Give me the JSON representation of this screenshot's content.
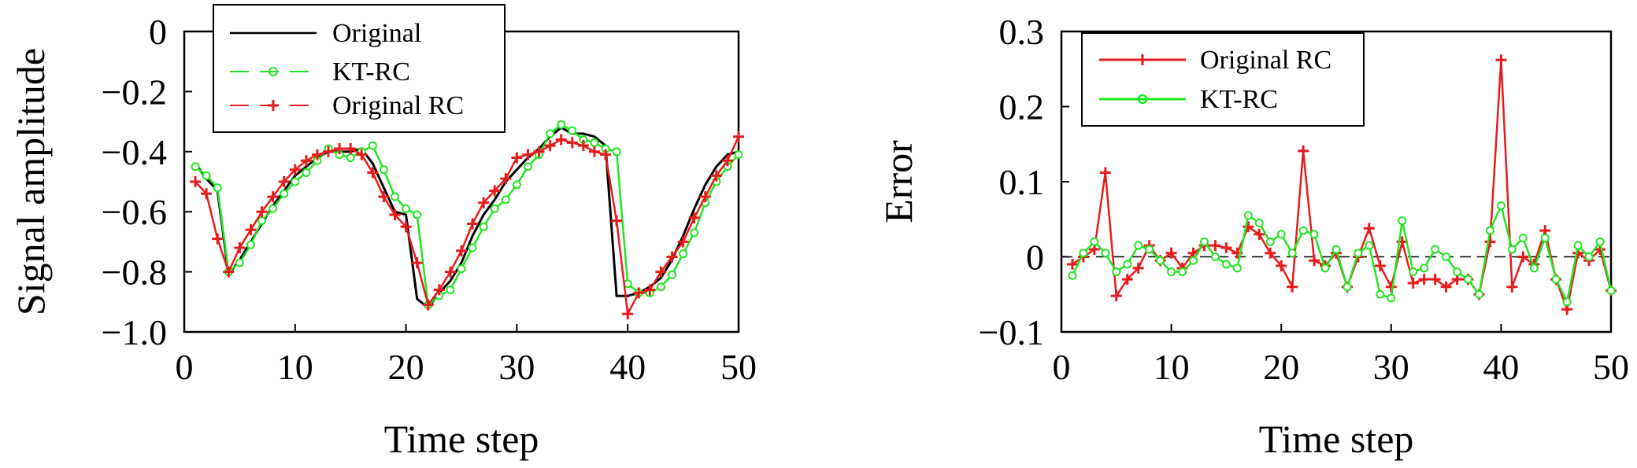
{
  "chart_data": [
    {
      "type": "line",
      "xlabel": "Time step",
      "ylabel": "Signal amplitude",
      "xlim": [
        0,
        50
      ],
      "ylim": [
        -1.0,
        0
      ],
      "xticks": [
        0,
        10,
        20,
        30,
        40,
        50
      ],
      "yticks": [
        0,
        -0.2,
        -0.4,
        -0.6,
        -0.8,
        -1.0
      ],
      "ytick_labels": [
        "0",
        "−0.2",
        "−0.4",
        "−0.6",
        "−0.8",
        "−1.0"
      ],
      "grid": false,
      "legend": "top-left",
      "x": [
        1,
        2,
        3,
        4,
        5,
        6,
        7,
        8,
        9,
        10,
        11,
        12,
        13,
        14,
        15,
        16,
        17,
        18,
        19,
        20,
        21,
        22,
        23,
        24,
        25,
        26,
        27,
        28,
        29,
        30,
        31,
        32,
        33,
        34,
        35,
        36,
        37,
        38,
        39,
        40,
        41,
        42,
        43,
        44,
        45,
        46,
        47,
        48,
        49,
        50
      ],
      "series": [
        {
          "name": "Original",
          "color": "#000000",
          "marker": "none",
          "values": [
            -0.44,
            -0.49,
            -0.53,
            -0.81,
            -0.76,
            -0.7,
            -0.64,
            -0.58,
            -0.53,
            -0.48,
            -0.45,
            -0.42,
            -0.4,
            -0.4,
            -0.4,
            -0.39,
            -0.44,
            -0.52,
            -0.6,
            -0.61,
            -0.89,
            -0.92,
            -0.87,
            -0.83,
            -0.77,
            -0.68,
            -0.61,
            -0.56,
            -0.5,
            -0.46,
            -0.42,
            -0.39,
            -0.35,
            -0.32,
            -0.34,
            -0.34,
            -0.35,
            -0.38,
            -0.88,
            -0.88,
            -0.87,
            -0.85,
            -0.82,
            -0.76,
            -0.68,
            -0.59,
            -0.51,
            -0.45,
            -0.41,
            -0.4
          ]
        },
        {
          "name": "KT-RC",
          "color": "#22e622",
          "marker": "circle",
          "values": [
            -0.45,
            -0.48,
            -0.52,
            -0.8,
            -0.77,
            -0.71,
            -0.63,
            -0.59,
            -0.54,
            -0.5,
            -0.47,
            -0.43,
            -0.39,
            -0.41,
            -0.42,
            -0.4,
            -0.38,
            -0.46,
            -0.55,
            -0.59,
            -0.61,
            -0.91,
            -0.88,
            -0.86,
            -0.79,
            -0.72,
            -0.65,
            -0.59,
            -0.56,
            -0.51,
            -0.45,
            -0.41,
            -0.34,
            -0.31,
            -0.33,
            -0.36,
            -0.37,
            -0.39,
            -0.4,
            -0.84,
            -0.87,
            -0.87,
            -0.85,
            -0.81,
            -0.74,
            -0.67,
            -0.57,
            -0.5,
            -0.45,
            -0.41
          ]
        },
        {
          "name": "Original RC",
          "color": "#e61c1c",
          "marker": "plus",
          "values": [
            -0.5,
            -0.54,
            -0.69,
            -0.8,
            -0.72,
            -0.66,
            -0.6,
            -0.55,
            -0.5,
            -0.46,
            -0.43,
            -0.41,
            -0.4,
            -0.39,
            -0.39,
            -0.41,
            -0.47,
            -0.55,
            -0.61,
            -0.65,
            -0.77,
            -0.91,
            -0.86,
            -0.8,
            -0.73,
            -0.64,
            -0.57,
            -0.53,
            -0.49,
            -0.42,
            -0.41,
            -0.4,
            -0.38,
            -0.36,
            -0.37,
            -0.38,
            -0.4,
            -0.41,
            -0.63,
            -0.94,
            -0.87,
            -0.86,
            -0.8,
            -0.75,
            -0.7,
            -0.62,
            -0.55,
            -0.48,
            -0.43,
            -0.35
          ]
        }
      ]
    },
    {
      "type": "line",
      "xlabel": "Time step",
      "ylabel": "Error",
      "xlim": [
        0,
        50
      ],
      "ylim": [
        -0.1,
        0.3
      ],
      "xticks": [
        0,
        10,
        20,
        30,
        40,
        50
      ],
      "yticks": [
        0.3,
        0.2,
        0.1,
        0,
        -0.1
      ],
      "ytick_labels": [
        "0.3",
        "0.2",
        "0.1",
        "0",
        "−0.1"
      ],
      "grid": false,
      "legend": "top-left",
      "reference_line": 0,
      "x": [
        1,
        2,
        3,
        4,
        5,
        6,
        7,
        8,
        9,
        10,
        11,
        12,
        13,
        14,
        15,
        16,
        17,
        18,
        19,
        20,
        21,
        22,
        23,
        24,
        25,
        26,
        27,
        28,
        29,
        30,
        31,
        32,
        33,
        34,
        35,
        36,
        37,
        38,
        39,
        40,
        41,
        42,
        43,
        44,
        45,
        46,
        47,
        48,
        49,
        50
      ],
      "series": [
        {
          "name": "Original RC",
          "color": "#e61c1c",
          "marker": "plus",
          "values": [
            -0.01,
            0.0,
            0.01,
            0.112,
            -0.052,
            -0.03,
            -0.015,
            0.015,
            -0.005,
            0.005,
            -0.015,
            0.005,
            0.015,
            0.015,
            0.012,
            0.005,
            0.04,
            0.03,
            0.005,
            -0.012,
            -0.04,
            0.141,
            -0.005,
            -0.012,
            0.005,
            -0.04,
            0.0,
            0.038,
            -0.012,
            -0.04,
            0.02,
            -0.035,
            -0.03,
            -0.03,
            -0.04,
            -0.03,
            -0.03,
            -0.05,
            0.02,
            0.262,
            -0.04,
            0.0,
            -0.01,
            0.035,
            -0.03,
            -0.07,
            0.005,
            -0.005,
            0.01,
            -0.045
          ]
        },
        {
          "name": "KT-RC",
          "color": "#22e622",
          "marker": "circle",
          "values": [
            -0.025,
            0.005,
            0.02,
            0.005,
            -0.02,
            -0.01,
            0.015,
            0.01,
            -0.005,
            -0.02,
            -0.02,
            -0.005,
            0.02,
            0.0,
            -0.01,
            -0.015,
            0.055,
            0.045,
            0.02,
            0.03,
            0.005,
            0.035,
            0.03,
            -0.015,
            0.01,
            -0.04,
            0.005,
            0.015,
            -0.05,
            -0.055,
            0.048,
            -0.02,
            -0.015,
            0.01,
            0.0,
            -0.02,
            -0.03,
            -0.05,
            0.035,
            0.068,
            0.01,
            0.025,
            -0.015,
            0.025,
            -0.03,
            -0.06,
            0.015,
            0.0,
            0.02,
            -0.045
          ]
        }
      ]
    }
  ]
}
